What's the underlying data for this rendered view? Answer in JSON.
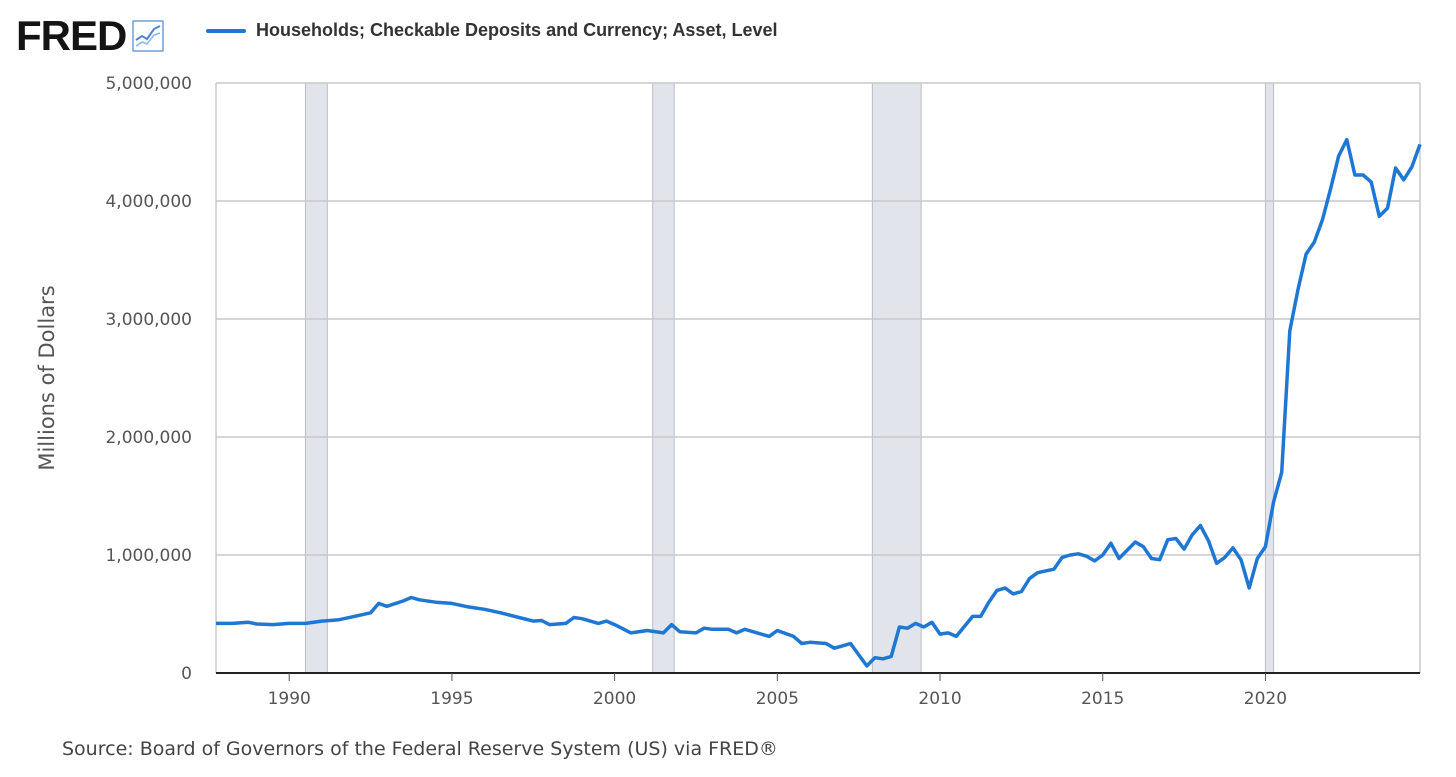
{
  "logo": {
    "text": "FRED",
    "icon": "line-chart-icon"
  },
  "legend": {
    "label": "Households; Checkable Deposits and Currency; Asset, Level",
    "color": "#1f77d4"
  },
  "source": "Source: Board of Governors of the Federal Reserve System (US) via FRED®",
  "chart_data": {
    "type": "line",
    "title": "",
    "xlabel": "",
    "ylabel": "Millions of Dollars",
    "xlim": [
      1987.75,
      2024.75
    ],
    "ylim": [
      0,
      5000000
    ],
    "y_ticks": [
      {
        "value": 0,
        "label": "0"
      },
      {
        "value": 1000000,
        "label": "1,000,000"
      },
      {
        "value": 2000000,
        "label": "2,000,000"
      },
      {
        "value": 3000000,
        "label": "3,000,000"
      },
      {
        "value": 4000000,
        "label": "4,000,000"
      },
      {
        "value": 5000000,
        "label": "5,000,000"
      }
    ],
    "x_ticks": [
      {
        "value": 1990,
        "label": "1990"
      },
      {
        "value": 1995,
        "label": "1995"
      },
      {
        "value": 2000,
        "label": "2000"
      },
      {
        "value": 2005,
        "label": "2005"
      },
      {
        "value": 2010,
        "label": "2010"
      },
      {
        "value": 2015,
        "label": "2015"
      },
      {
        "value": 2020,
        "label": "2020"
      }
    ],
    "grid": "horizontal",
    "recessions": [
      {
        "start": 1990.5,
        "end": 1991.17
      },
      {
        "start": 2001.17,
        "end": 2001.83
      },
      {
        "start": 2007.92,
        "end": 2009.42
      },
      {
        "start": 2020.0,
        "end": 2020.25
      }
    ],
    "series": [
      {
        "name": "Households; Checkable Deposits and Currency; Asset, Level",
        "color": "#1f77d4",
        "points": [
          [
            1987.75,
            420000
          ],
          [
            1988.25,
            420000
          ],
          [
            1988.75,
            430000
          ],
          [
            1989.0,
            415000
          ],
          [
            1989.5,
            410000
          ],
          [
            1990.0,
            420000
          ],
          [
            1990.5,
            420000
          ],
          [
            1991.0,
            440000
          ],
          [
            1991.5,
            450000
          ],
          [
            1992.0,
            480000
          ],
          [
            1992.5,
            510000
          ],
          [
            1992.75,
            590000
          ],
          [
            1993.0,
            565000
          ],
          [
            1993.5,
            610000
          ],
          [
            1993.75,
            640000
          ],
          [
            1994.0,
            620000
          ],
          [
            1994.5,
            600000
          ],
          [
            1995.0,
            590000
          ],
          [
            1995.5,
            560000
          ],
          [
            1996.0,
            540000
          ],
          [
            1996.5,
            510000
          ],
          [
            1997.0,
            475000
          ],
          [
            1997.5,
            440000
          ],
          [
            1997.75,
            445000
          ],
          [
            1998.0,
            410000
          ],
          [
            1998.5,
            420000
          ],
          [
            1998.75,
            470000
          ],
          [
            1999.0,
            460000
          ],
          [
            1999.5,
            420000
          ],
          [
            1999.75,
            440000
          ],
          [
            2000.0,
            410000
          ],
          [
            2000.5,
            340000
          ],
          [
            2001.0,
            360000
          ],
          [
            2001.5,
            340000
          ],
          [
            2001.75,
            410000
          ],
          [
            2002.0,
            350000
          ],
          [
            2002.5,
            340000
          ],
          [
            2002.75,
            380000
          ],
          [
            2003.0,
            370000
          ],
          [
            2003.5,
            370000
          ],
          [
            2003.75,
            340000
          ],
          [
            2004.0,
            370000
          ],
          [
            2004.5,
            330000
          ],
          [
            2004.75,
            310000
          ],
          [
            2005.0,
            360000
          ],
          [
            2005.5,
            310000
          ],
          [
            2005.75,
            250000
          ],
          [
            2006.0,
            260000
          ],
          [
            2006.5,
            250000
          ],
          [
            2006.75,
            210000
          ],
          [
            2007.0,
            230000
          ],
          [
            2007.25,
            250000
          ],
          [
            2007.75,
            60000
          ],
          [
            2008.0,
            130000
          ],
          [
            2008.25,
            120000
          ],
          [
            2008.5,
            140000
          ],
          [
            2008.75,
            390000
          ],
          [
            2009.0,
            380000
          ],
          [
            2009.25,
            420000
          ],
          [
            2009.5,
            390000
          ],
          [
            2009.75,
            430000
          ],
          [
            2010.0,
            330000
          ],
          [
            2010.25,
            340000
          ],
          [
            2010.5,
            310000
          ],
          [
            2011.0,
            480000
          ],
          [
            2011.25,
            480000
          ],
          [
            2011.5,
            600000
          ],
          [
            2011.75,
            700000
          ],
          [
            2012.0,
            720000
          ],
          [
            2012.25,
            670000
          ],
          [
            2012.5,
            690000
          ],
          [
            2012.75,
            800000
          ],
          [
            2013.0,
            850000
          ],
          [
            2013.5,
            880000
          ],
          [
            2013.75,
            980000
          ],
          [
            2014.0,
            1000000
          ],
          [
            2014.25,
            1010000
          ],
          [
            2014.5,
            990000
          ],
          [
            2014.75,
            950000
          ],
          [
            2015.0,
            1000000
          ],
          [
            2015.25,
            1100000
          ],
          [
            2015.5,
            970000
          ],
          [
            2016.0,
            1110000
          ],
          [
            2016.25,
            1070000
          ],
          [
            2016.5,
            970000
          ],
          [
            2016.75,
            960000
          ],
          [
            2017.0,
            1130000
          ],
          [
            2017.25,
            1140000
          ],
          [
            2017.5,
            1050000
          ],
          [
            2017.75,
            1170000
          ],
          [
            2018.0,
            1250000
          ],
          [
            2018.25,
            1120000
          ],
          [
            2018.5,
            930000
          ],
          [
            2018.75,
            980000
          ],
          [
            2019.0,
            1060000
          ],
          [
            2019.25,
            960000
          ],
          [
            2019.5,
            720000
          ],
          [
            2019.75,
            970000
          ],
          [
            2020.0,
            1070000
          ],
          [
            2020.25,
            1450000
          ],
          [
            2020.5,
            1700000
          ],
          [
            2020.75,
            2900000
          ],
          [
            2021.0,
            3250000
          ],
          [
            2021.25,
            3550000
          ],
          [
            2021.5,
            3650000
          ],
          [
            2021.75,
            3840000
          ],
          [
            2022.0,
            4100000
          ],
          [
            2022.25,
            4380000
          ],
          [
            2022.5,
            4520000
          ],
          [
            2022.75,
            4220000
          ],
          [
            2023.0,
            4220000
          ],
          [
            2023.25,
            4160000
          ],
          [
            2023.5,
            3870000
          ],
          [
            2023.75,
            3940000
          ],
          [
            2024.0,
            4280000
          ],
          [
            2024.25,
            4180000
          ],
          [
            2024.5,
            4290000
          ],
          [
            2024.75,
            4480000
          ]
        ]
      }
    ]
  }
}
